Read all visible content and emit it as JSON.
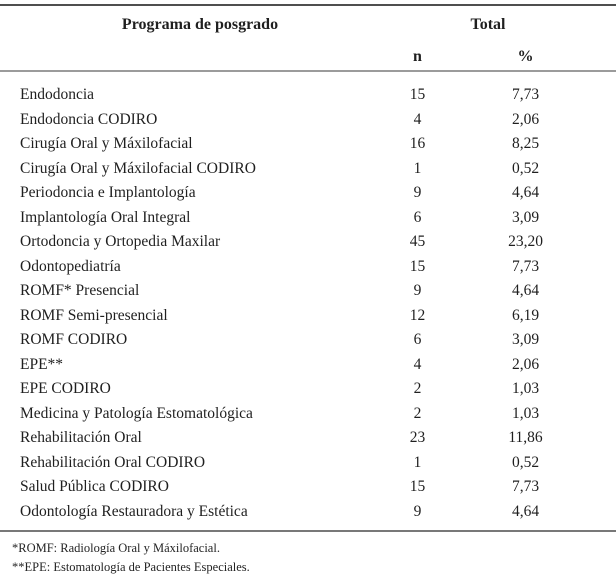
{
  "table": {
    "header": {
      "program": "Programa de posgrado",
      "total": "Total",
      "n": "n",
      "pct": "%"
    },
    "rows": [
      {
        "program": "Endodoncia",
        "n": "15",
        "pct": "7,73"
      },
      {
        "program": "Endodoncia CODIRO",
        "n": "4",
        "pct": "2,06"
      },
      {
        "program": "Cirugía Oral y Máxilofacial",
        "n": "16",
        "pct": "8,25"
      },
      {
        "program": "Cirugía Oral y Máxilofacial CODIRO",
        "n": "1",
        "pct": "0,52"
      },
      {
        "program": "Periodoncia e Implantología",
        "n": "9",
        "pct": "4,64"
      },
      {
        "program": "Implantología Oral Integral",
        "n": "6",
        "pct": "3,09"
      },
      {
        "program": "Ortodoncia y Ortopedia Maxilar",
        "n": "45",
        "pct": "23,20"
      },
      {
        "program": "Odontopediatría",
        "n": "15",
        "pct": "7,73"
      },
      {
        "program": "ROMF* Presencial",
        "n": "9",
        "pct": "4,64"
      },
      {
        "program": "ROMF Semi-presencial",
        "n": "12",
        "pct": "6,19"
      },
      {
        "program": "ROMF CODIRO",
        "n": "6",
        "pct": "3,09"
      },
      {
        "program": "EPE**",
        "n": "4",
        "pct": "2,06"
      },
      {
        "program": "EPE CODIRO",
        "n": "2",
        "pct": "1,03"
      },
      {
        "program": "Medicina y Patología Estomatológica",
        "n": "2",
        "pct": "1,03"
      },
      {
        "program": "Rehabilitación Oral",
        "n": "23",
        "pct": "11,86"
      },
      {
        "program": "Rehabilitación Oral CODIRO",
        "n": "1",
        "pct": "0,52"
      },
      {
        "program": "Salud Pública CODIRO",
        "n": "15",
        "pct": "7,73"
      },
      {
        "program": "Odontología Restauradora y Estética",
        "n": "9",
        "pct": "4,64"
      }
    ]
  },
  "footnotes": [
    "*ROMF: Radiología Oral y Máxilofacial.",
    "**EPE: Estomatología de Pacientes Especiales."
  ],
  "colors": {
    "background": "#ffffff",
    "text": "#1f1f1f",
    "line_top": "#4f4f4f",
    "line_middle": "#9b9b9b",
    "line_bottom": "#787878"
  }
}
